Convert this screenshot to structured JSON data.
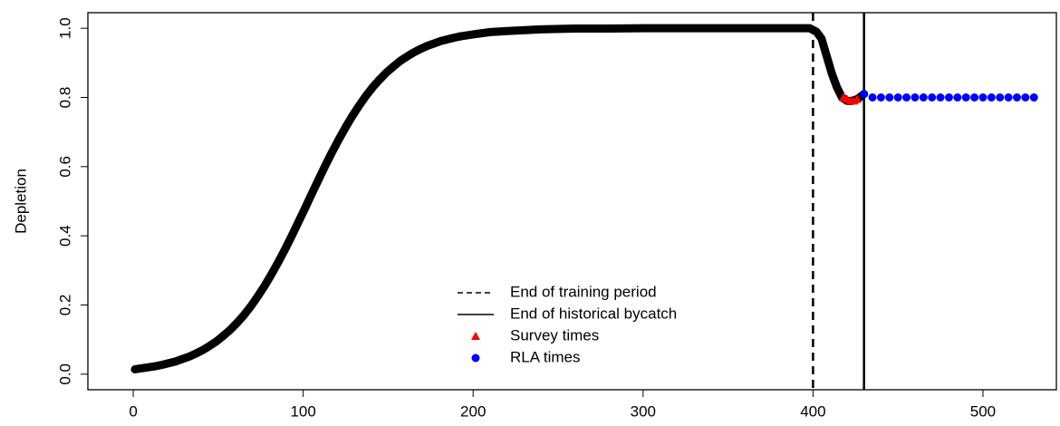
{
  "chart_data": {
    "type": "scatter",
    "y_label": "Depletion",
    "xlim": [
      -26.7,
      543.2
    ],
    "ylim": [
      -0.045,
      1.045
    ],
    "xticks": [
      0,
      100,
      200,
      300,
      400,
      500
    ],
    "yticks": [
      {
        "value": 0,
        "label": "0.0"
      },
      {
        "value": 0.2,
        "label": "0.2"
      },
      {
        "value": 0.4,
        "label": "0.4"
      },
      {
        "value": 0.6,
        "label": "0.6"
      },
      {
        "value": 0.8,
        "label": "0.8"
      },
      {
        "value": 1,
        "label": "1.0"
      }
    ],
    "series": [
      {
        "color": "#000000",
        "marker": "line",
        "x": [
          1,
          5,
          9,
          13,
          17,
          21,
          25,
          29,
          33,
          37,
          41,
          45,
          49,
          53,
          57,
          61,
          65,
          69,
          73,
          77,
          81,
          85,
          89,
          93,
          97,
          101,
          105,
          109,
          113,
          117,
          121,
          125,
          129,
          133,
          137,
          141,
          145,
          149,
          153,
          157,
          161,
          165,
          169,
          173,
          177,
          181,
          185,
          189,
          193,
          197,
          201,
          210,
          220,
          240,
          260,
          280,
          300,
          320,
          340,
          360,
          380,
          398,
          402,
          405,
          408,
          411,
          414,
          417,
          420,
          423,
          426,
          430
        ],
        "values": [
          0.014,
          0.017,
          0.02,
          0.023,
          0.027,
          0.032,
          0.037,
          0.044,
          0.051,
          0.06,
          0.07,
          0.082,
          0.095,
          0.111,
          0.128,
          0.148,
          0.17,
          0.195,
          0.223,
          0.253,
          0.286,
          0.321,
          0.358,
          0.397,
          0.438,
          0.479,
          0.521,
          0.562,
          0.603,
          0.642,
          0.679,
          0.714,
          0.747,
          0.777,
          0.805,
          0.83,
          0.852,
          0.872,
          0.889,
          0.905,
          0.918,
          0.93,
          0.94,
          0.949,
          0.956,
          0.963,
          0.968,
          0.973,
          0.977,
          0.98,
          0.983,
          0.989,
          0.992,
          0.997,
          0.999,
          0.999,
          1.0,
          1.0,
          1.0,
          1.0,
          1.0,
          1.0,
          0.99,
          0.97,
          0.92,
          0.87,
          0.83,
          0.8,
          0.79,
          0.79,
          0.795,
          0.81
        ]
      },
      {
        "name": "Survey times",
        "color": "#ff0000",
        "marker": "triangle",
        "x": [
          418,
          420,
          422,
          424,
          426
        ],
        "values": [
          0.8,
          0.795,
          0.79,
          0.79,
          0.795
        ]
      },
      {
        "name": "RLA times",
        "color": "#0000ff",
        "marker": "circle",
        "x": [
          430,
          435,
          440,
          445,
          450,
          455,
          460,
          465,
          470,
          475,
          480,
          485,
          490,
          495,
          500,
          505,
          510,
          515,
          520,
          525,
          530
        ],
        "values": [
          0.81,
          0.8,
          0.8,
          0.8,
          0.8,
          0.8,
          0.8,
          0.8,
          0.8,
          0.8,
          0.8,
          0.8,
          0.8,
          0.8,
          0.8,
          0.8,
          0.8,
          0.8,
          0.8,
          0.8,
          0.8
        ]
      }
    ],
    "vlines": [
      {
        "name": "End of training period",
        "x": 400,
        "dash": true
      },
      {
        "name": "End of historical bycatch",
        "x": 430,
        "dash": false
      }
    ]
  }
}
